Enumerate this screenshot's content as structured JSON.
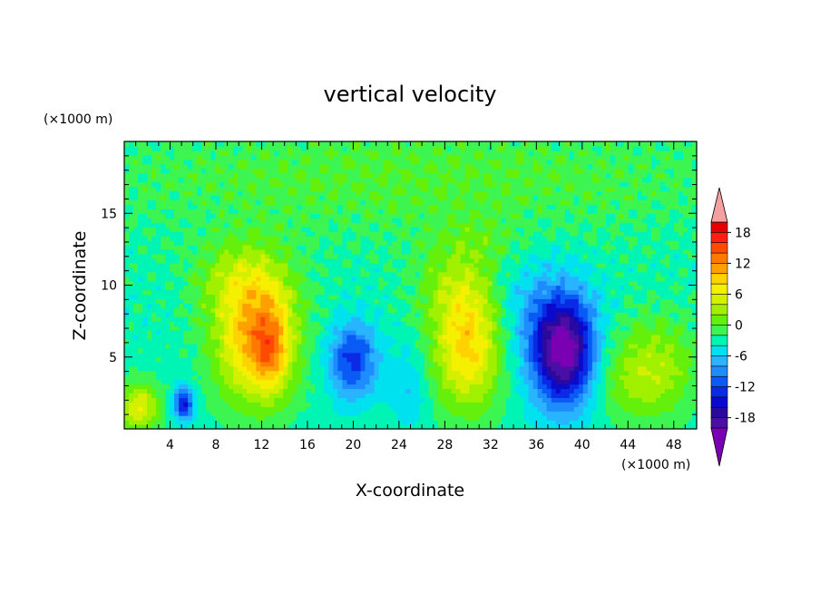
{
  "chart_data": {
    "type": "heatmap",
    "title": "vertical velocity",
    "xlabel": "X-coordinate",
    "ylabel": "Z-coordinate",
    "x_unit": "(×1000 m)",
    "y_unit": "(×1000 m)",
    "xlim": [
      0,
      50
    ],
    "ylim": [
      0,
      20
    ],
    "x_ticks": [
      "4",
      "8",
      "12",
      "16",
      "20",
      "24",
      "28",
      "32",
      "36",
      "40",
      "44",
      "48"
    ],
    "y_ticks": [
      "5",
      "10",
      "15"
    ],
    "colorbar": {
      "ticks": [
        "18",
        "12",
        "6",
        "0",
        "-6",
        "-12",
        "-18"
      ],
      "levels": [
        -20,
        -18,
        -16,
        -14,
        -12,
        -10,
        -8,
        -6,
        -4,
        -2,
        0,
        2,
        4,
        6,
        8,
        10,
        12,
        14,
        16,
        18,
        20
      ],
      "colors": [
        "#7a00b4",
        "#4b0fa5",
        "#2a0a9e",
        "#0a0acd",
        "#0a2ae6",
        "#0a5af5",
        "#1e8cff",
        "#28b4ff",
        "#00e1f0",
        "#00f5b4",
        "#3cf550",
        "#64f00a",
        "#a0f000",
        "#d2f000",
        "#f5f000",
        "#ffd200",
        "#ffa000",
        "#ff7800",
        "#ff4b00",
        "#ff1e14",
        "#e60000",
        "#f5a0a0"
      ]
    },
    "background_value": -3,
    "features": [
      {
        "x": 11.5,
        "z": 6.5,
        "sx": 2.5,
        "sz": 3.2,
        "value": 14
      },
      {
        "x": 12.8,
        "z": 5.5,
        "sx": 1.0,
        "sz": 2.0,
        "value": 6
      },
      {
        "x": 10.0,
        "z": 10.5,
        "sx": 3.0,
        "sz": 1.8,
        "value": 4
      },
      {
        "x": 30.0,
        "z": 6.0,
        "sx": 2.2,
        "sz": 3.2,
        "value": 12
      },
      {
        "x": 28.5,
        "z": 10.0,
        "sx": 2.5,
        "sz": 1.8,
        "value": 3
      },
      {
        "x": 38.4,
        "z": 5.5,
        "sx": 1.9,
        "sz": 2.7,
        "value": -19
      },
      {
        "x": 20.0,
        "z": 4.8,
        "sx": 1.5,
        "sz": 1.8,
        "value": -10
      },
      {
        "x": 1.3,
        "z": 1.5,
        "sx": 1.3,
        "sz": 1.2,
        "value": 9
      },
      {
        "x": 5.2,
        "z": 1.8,
        "sx": 0.6,
        "sz": 0.8,
        "value": -12
      },
      {
        "x": 45.0,
        "z": 3.5,
        "sx": 2.8,
        "sz": 2.2,
        "value": 5
      },
      {
        "x": 25.0,
        "z": 3.0,
        "sx": 1.2,
        "sz": 2.0,
        "value": -3
      },
      {
        "x": 35.0,
        "z": 8.0,
        "sx": 2.5,
        "sz": 3.0,
        "value": -3
      },
      {
        "x": 25.0,
        "z": 17.5,
        "sx": 22.0,
        "sz": 3.0,
        "value": 3
      },
      {
        "x": 47.0,
        "z": 5.0,
        "sx": 2.5,
        "sz": 2.5,
        "value": 3
      },
      {
        "x": 31.0,
        "z": 13.0,
        "sx": 3.0,
        "sz": 1.2,
        "value": 2
      }
    ]
  }
}
